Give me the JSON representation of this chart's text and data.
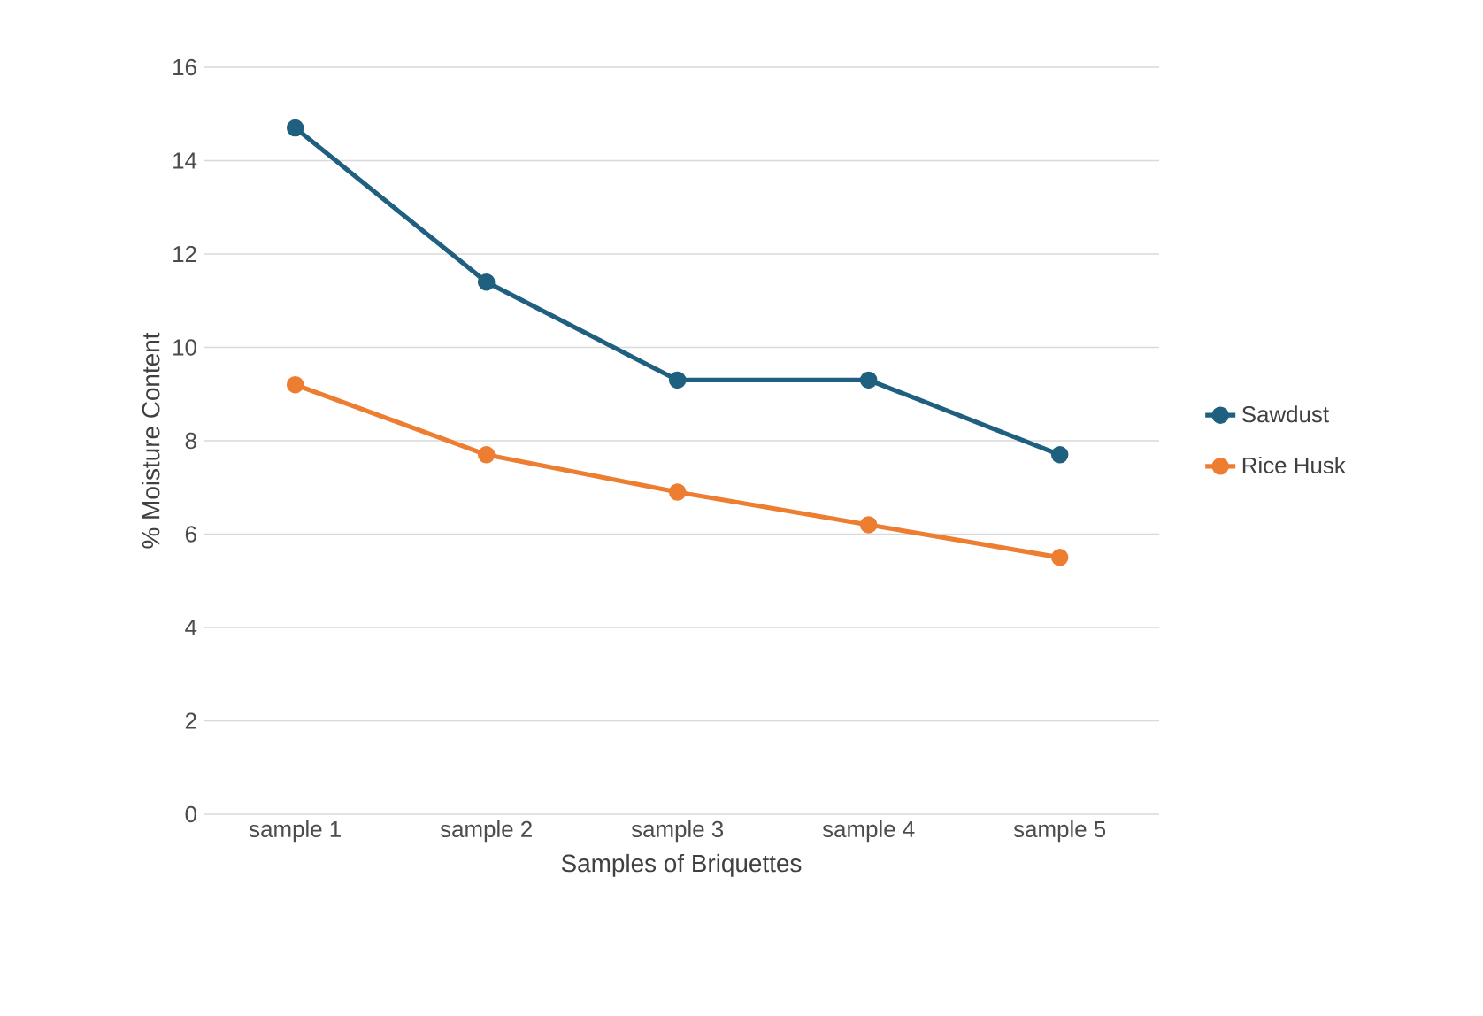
{
  "chart_data": {
    "type": "line",
    "xlabel": "Samples of Briquettes",
    "ylabel": "% Moisture Content",
    "categories": [
      "sample 1",
      "sample 2",
      "sample 3",
      "sample 4",
      "sample 5"
    ],
    "series": [
      {
        "name": "Sawdust",
        "color": "#1f5f7f",
        "values": [
          14.7,
          11.4,
          9.3,
          9.3,
          7.7
        ]
      },
      {
        "name": "Rice Husk",
        "color": "#ed7d31",
        "values": [
          9.2,
          7.7,
          6.9,
          6.2,
          5.5
        ]
      }
    ],
    "ylim": [
      0,
      16
    ],
    "yticks": [
      0,
      2,
      4,
      6,
      8,
      10,
      12,
      14,
      16
    ],
    "grid": "y",
    "legend": "right",
    "marker": "circle",
    "line_style": "solid"
  }
}
